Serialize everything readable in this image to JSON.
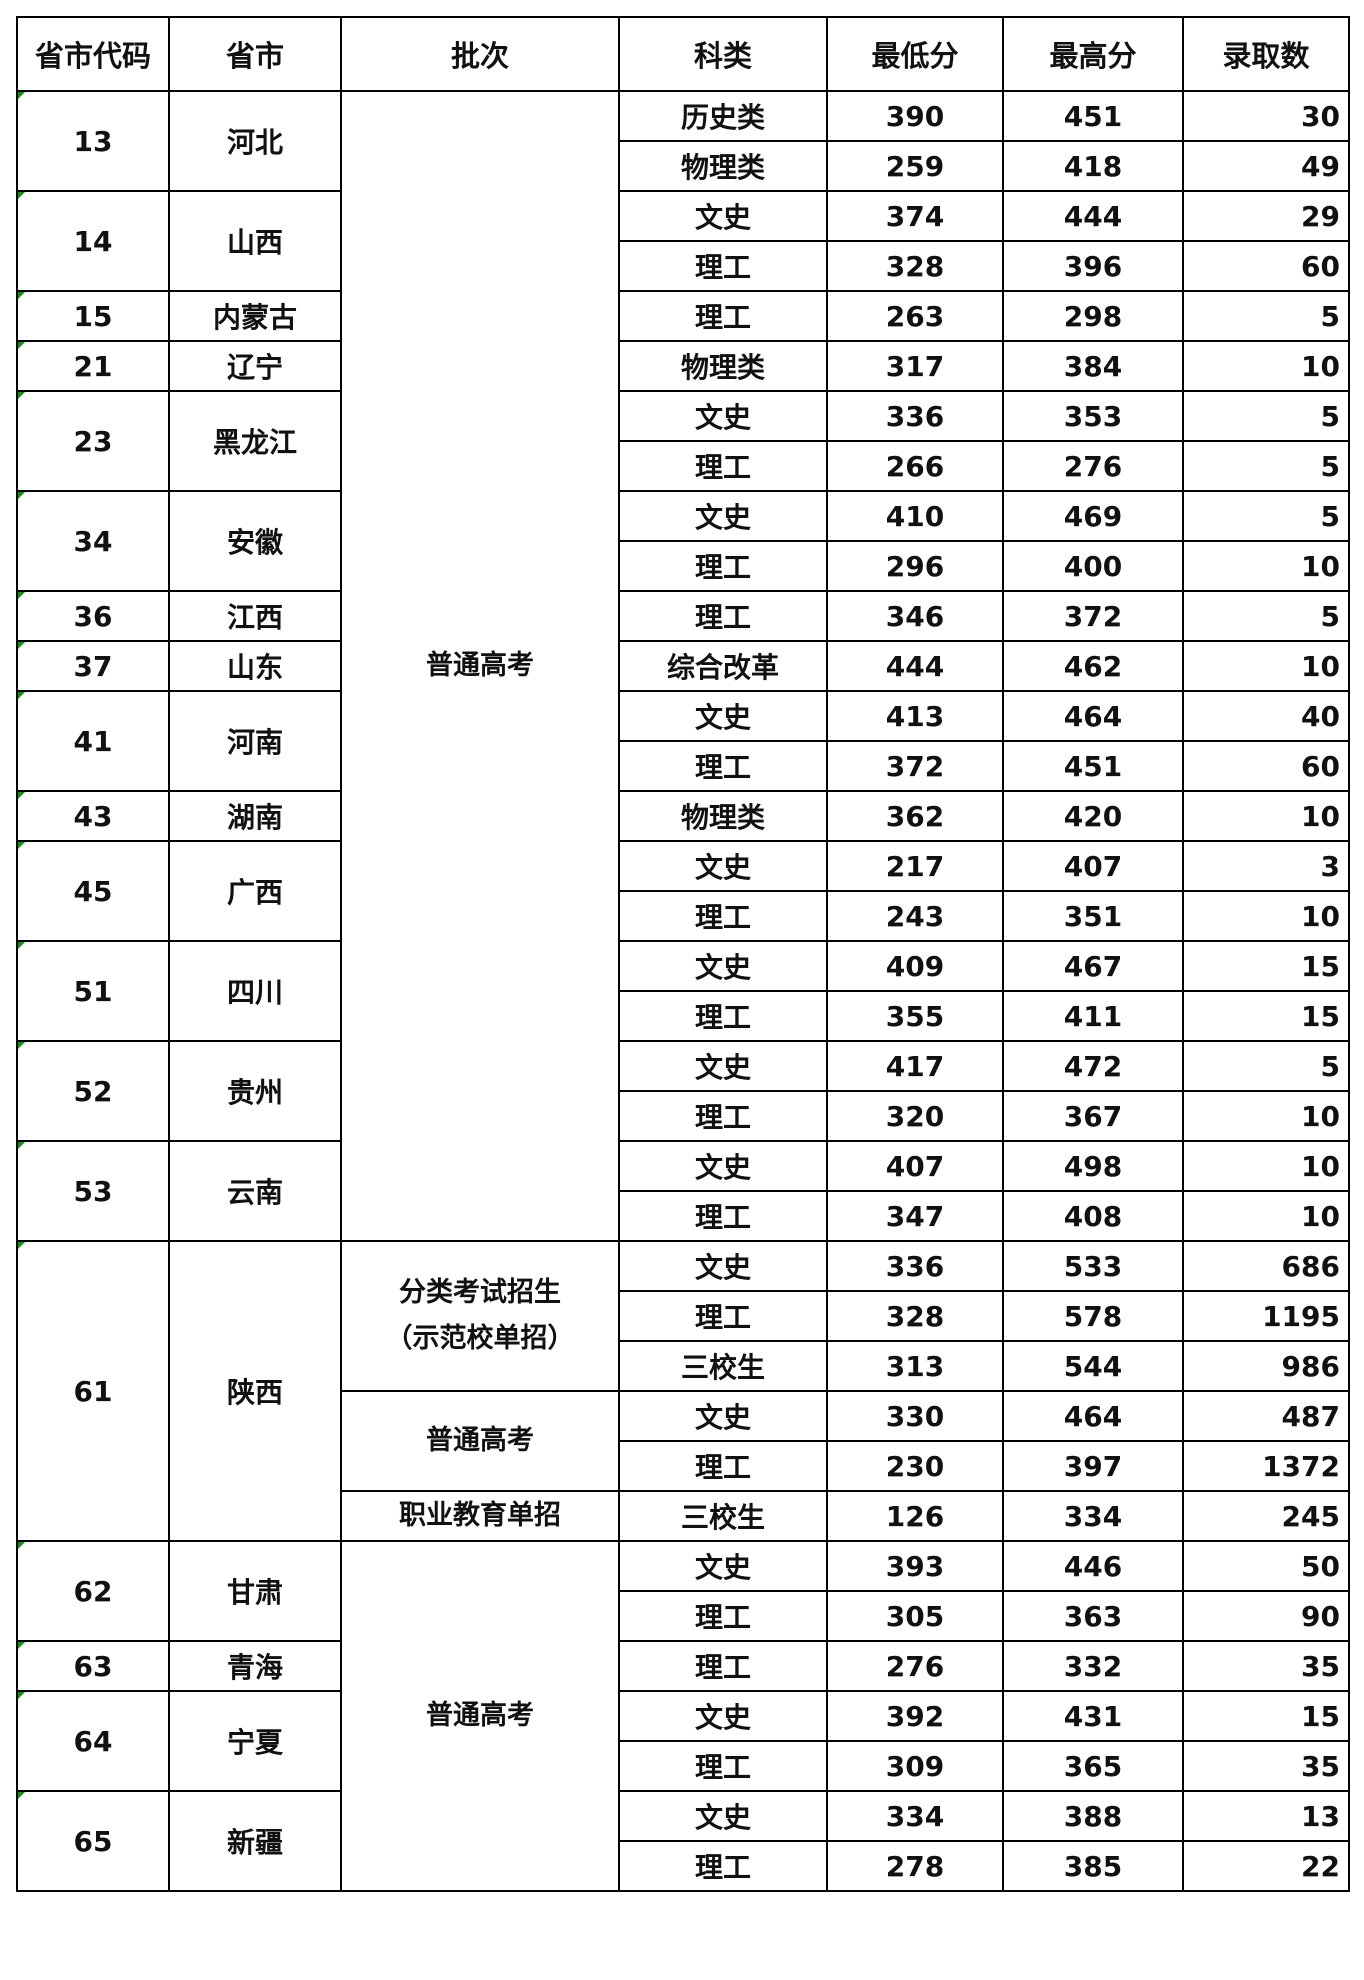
{
  "header": [
    "省市代码",
    "省市",
    "批次",
    "科类",
    "最低分",
    "最高分",
    "录取数"
  ],
  "accent_marker_color": "#1a8a1a",
  "provinces": [
    {
      "code": "13",
      "name": "河北",
      "rows": [
        [
          "历史类",
          "390",
          "451",
          "30"
        ],
        [
          "物理类",
          "259",
          "418",
          "49"
        ]
      ]
    },
    {
      "code": "14",
      "name": "山西",
      "rows": [
        [
          "文史",
          "374",
          "444",
          "29"
        ],
        [
          "理工",
          "328",
          "396",
          "60"
        ]
      ]
    },
    {
      "code": "15",
      "name": "内蒙古",
      "rows": [
        [
          "理工",
          "263",
          "298",
          "5"
        ]
      ]
    },
    {
      "code": "21",
      "name": "辽宁",
      "rows": [
        [
          "物理类",
          "317",
          "384",
          "10"
        ]
      ]
    },
    {
      "code": "23",
      "name": "黑龙江",
      "rows": [
        [
          "文史",
          "336",
          "353",
          "5"
        ],
        [
          "理工",
          "266",
          "276",
          "5"
        ]
      ]
    },
    {
      "code": "34",
      "name": "安徽",
      "rows": [
        [
          "文史",
          "410",
          "469",
          "5"
        ],
        [
          "理工",
          "296",
          "400",
          "10"
        ]
      ]
    },
    {
      "code": "36",
      "name": "江西",
      "rows": [
        [
          "理工",
          "346",
          "372",
          "5"
        ]
      ]
    },
    {
      "code": "37",
      "name": "山东",
      "rows": [
        [
          "综合改革",
          "444",
          "462",
          "10"
        ]
      ]
    },
    {
      "code": "41",
      "name": "河南",
      "rows": [
        [
          "文史",
          "413",
          "464",
          "40"
        ],
        [
          "理工",
          "372",
          "451",
          "60"
        ]
      ]
    },
    {
      "code": "43",
      "name": "湖南",
      "rows": [
        [
          "物理类",
          "362",
          "420",
          "10"
        ]
      ]
    },
    {
      "code": "45",
      "name": "广西",
      "rows": [
        [
          "文史",
          "217",
          "407",
          "3"
        ],
        [
          "理工",
          "243",
          "351",
          "10"
        ]
      ]
    },
    {
      "code": "51",
      "name": "四川",
      "rows": [
        [
          "文史",
          "409",
          "467",
          "15"
        ],
        [
          "理工",
          "355",
          "411",
          "15"
        ]
      ]
    },
    {
      "code": "52",
      "name": "贵州",
      "rows": [
        [
          "文史",
          "417",
          "472",
          "5"
        ],
        [
          "理工",
          "320",
          "367",
          "10"
        ]
      ]
    },
    {
      "code": "53",
      "name": "云南",
      "rows": [
        [
          "文史",
          "407",
          "498",
          "10"
        ],
        [
          "理工",
          "347",
          "408",
          "10"
        ]
      ]
    },
    {
      "code": "61",
      "name": "陕西",
      "rows": [
        [
          "文史",
          "336",
          "533",
          "686"
        ],
        [
          "理工",
          "328",
          "578",
          "1195"
        ],
        [
          "三校生",
          "313",
          "544",
          "986"
        ],
        [
          "文史",
          "330",
          "464",
          "487"
        ],
        [
          "理工",
          "230",
          "397",
          "1372"
        ],
        [
          "三校生",
          "126",
          "334",
          "245"
        ]
      ]
    },
    {
      "code": "62",
      "name": "甘肃",
      "rows": [
        [
          "文史",
          "393",
          "446",
          "50"
        ],
        [
          "理工",
          "305",
          "363",
          "90"
        ]
      ]
    },
    {
      "code": "63",
      "name": "青海",
      "rows": [
        [
          "理工",
          "276",
          "332",
          "35"
        ]
      ]
    },
    {
      "code": "64",
      "name": "宁夏",
      "rows": [
        [
          "文史",
          "392",
          "431",
          "15"
        ],
        [
          "理工",
          "309",
          "365",
          "35"
        ]
      ]
    },
    {
      "code": "65",
      "name": "新疆",
      "rows": [
        [
          "文史",
          "334",
          "388",
          "13"
        ],
        [
          "理工",
          "278",
          "385",
          "22"
        ]
      ]
    }
  ],
  "batches": [
    {
      "start": 0,
      "span": 23,
      "lines": [
        "普通高考"
      ]
    },
    {
      "start": 23,
      "span": 3,
      "lines": [
        "分类考试招生",
        "（示范校单招）"
      ]
    },
    {
      "start": 26,
      "span": 2,
      "lines": [
        "普通高考"
      ]
    },
    {
      "start": 28,
      "span": 1,
      "lines": [
        "职业教育单招"
      ]
    },
    {
      "start": 29,
      "span": 7,
      "lines": [
        "普通高考"
      ]
    }
  ]
}
